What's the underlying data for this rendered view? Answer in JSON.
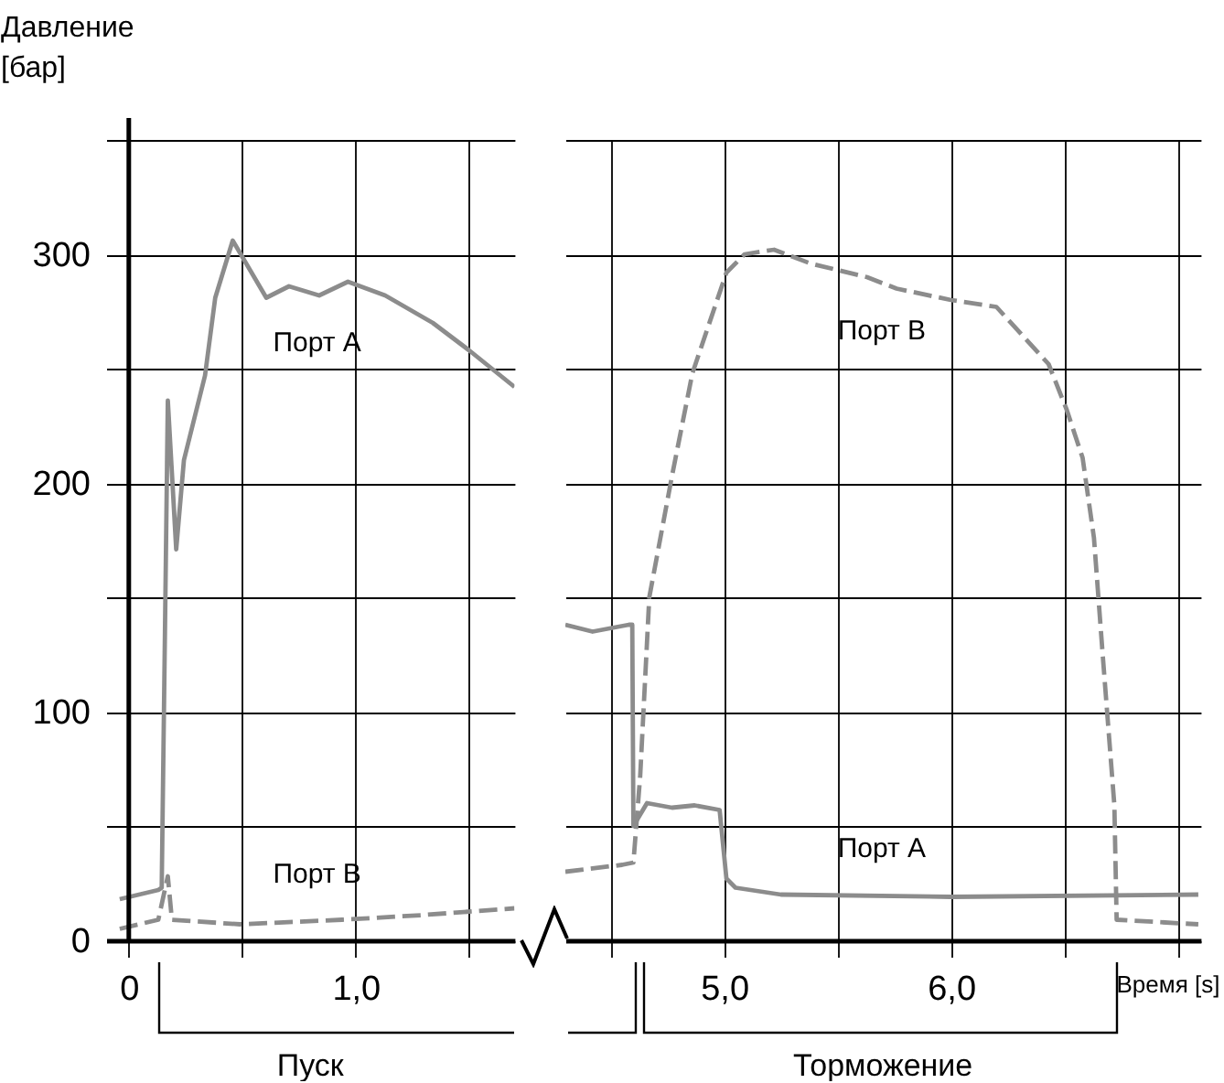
{
  "chart_data": [
    {
      "type": "line",
      "ylabel": "Давление\n[бар]",
      "xlim": [
        -0.1,
        1.7
      ],
      "xticks": [
        0,
        {
          "value": 0.5,
          "label": null
        },
        {
          "value": 1,
          "label": "1,0"
        },
        {
          "value": 1.5,
          "label": null
        }
      ],
      "ylim": [
        0,
        350
      ],
      "yticks": [
        0,
        {
          "value": 50,
          "label": null
        },
        100,
        {
          "value": 150,
          "label": null
        },
        200,
        {
          "value": 250,
          "label": null
        },
        300,
        {
          "value": 350,
          "label": null
        }
      ],
      "grid": true,
      "series": [
        {
          "name": "Порт A",
          "color": "#8c8c8c",
          "line_style": "solid",
          "x": [
            -0.04,
            0.13,
            0.145,
            0.16,
            0.172,
            0.209,
            0.243,
            0.336,
            0.381,
            0.458,
            0.606,
            0.706,
            0.839,
            0.966,
            1.13,
            1.34,
            1.5,
            1.7
          ],
          "values": [
            18,
            22,
            23,
            140,
            236,
            171,
            210,
            247,
            281,
            306,
            281,
            286,
            282,
            288,
            282,
            270,
            258,
            242
          ]
        },
        {
          "name": "Порт B",
          "color": "#8c8c8c",
          "line_style": "dashed",
          "x": [
            -0.04,
            0.13,
            0.172,
            0.19,
            0.49,
            0.94,
            1.29,
            1.7
          ],
          "values": [
            5,
            9,
            28,
            9,
            7,
            9,
            11,
            14
          ]
        }
      ],
      "annotations": [
        "Пуск"
      ]
    },
    {
      "type": "line",
      "xlabel": "Время [s]",
      "xlim": [
        4.3,
        7.1
      ],
      "xticks": [
        {
          "value": 4.5,
          "label": null
        },
        {
          "value": 5,
          "label": "5,0"
        },
        {
          "value": 5.5,
          "label": null
        },
        {
          "value": 6,
          "label": "6,0"
        },
        {
          "value": 6.5,
          "label": null
        },
        {
          "value": 7,
          "label": null
        }
      ],
      "ylim": [
        0,
        350
      ],
      "yticks": [
        0,
        {
          "value": 50,
          "label": null
        },
        100,
        {
          "value": 150,
          "label": null
        },
        200,
        {
          "value": 250,
          "label": null
        },
        300,
        {
          "value": 350,
          "label": null
        }
      ],
      "grid": true,
      "tick_labels": "x",
      "series": [
        {
          "name": "Порт A",
          "color": "#8c8c8c",
          "line_style": "solid",
          "x": [
            4.3,
            4.42,
            4.58,
            4.595,
            4.6,
            4.66,
            4.77,
            4.87,
            4.98,
            5.01,
            5.05,
            5.25,
            6.0,
            7.09
          ],
          "values": [
            138,
            135,
            138,
            138,
            50,
            60,
            58,
            59,
            57,
            27,
            23,
            20,
            19,
            20
          ]
        },
        {
          "name": "Порт B",
          "color": "#8c8c8c",
          "line_style": "dashed",
          "x": [
            4.3,
            4.55,
            4.6,
            4.63,
            4.67,
            4.77,
            4.86,
            5.01,
            5.09,
            5.22,
            5.38,
            5.63,
            5.76,
            6.0,
            6.2,
            6.43,
            6.51,
            6.58,
            6.63,
            6.67,
            6.72,
            6.73,
            7.09
          ],
          "values": [
            30,
            33,
            34,
            72,
            150,
            203,
            248,
            292,
            300,
            302,
            296,
            290,
            285,
            280,
            277,
            252,
            232,
            211,
            176,
            123,
            59,
            9,
            7
          ]
        }
      ],
      "annotations": [
        "Торможение"
      ]
    }
  ]
}
